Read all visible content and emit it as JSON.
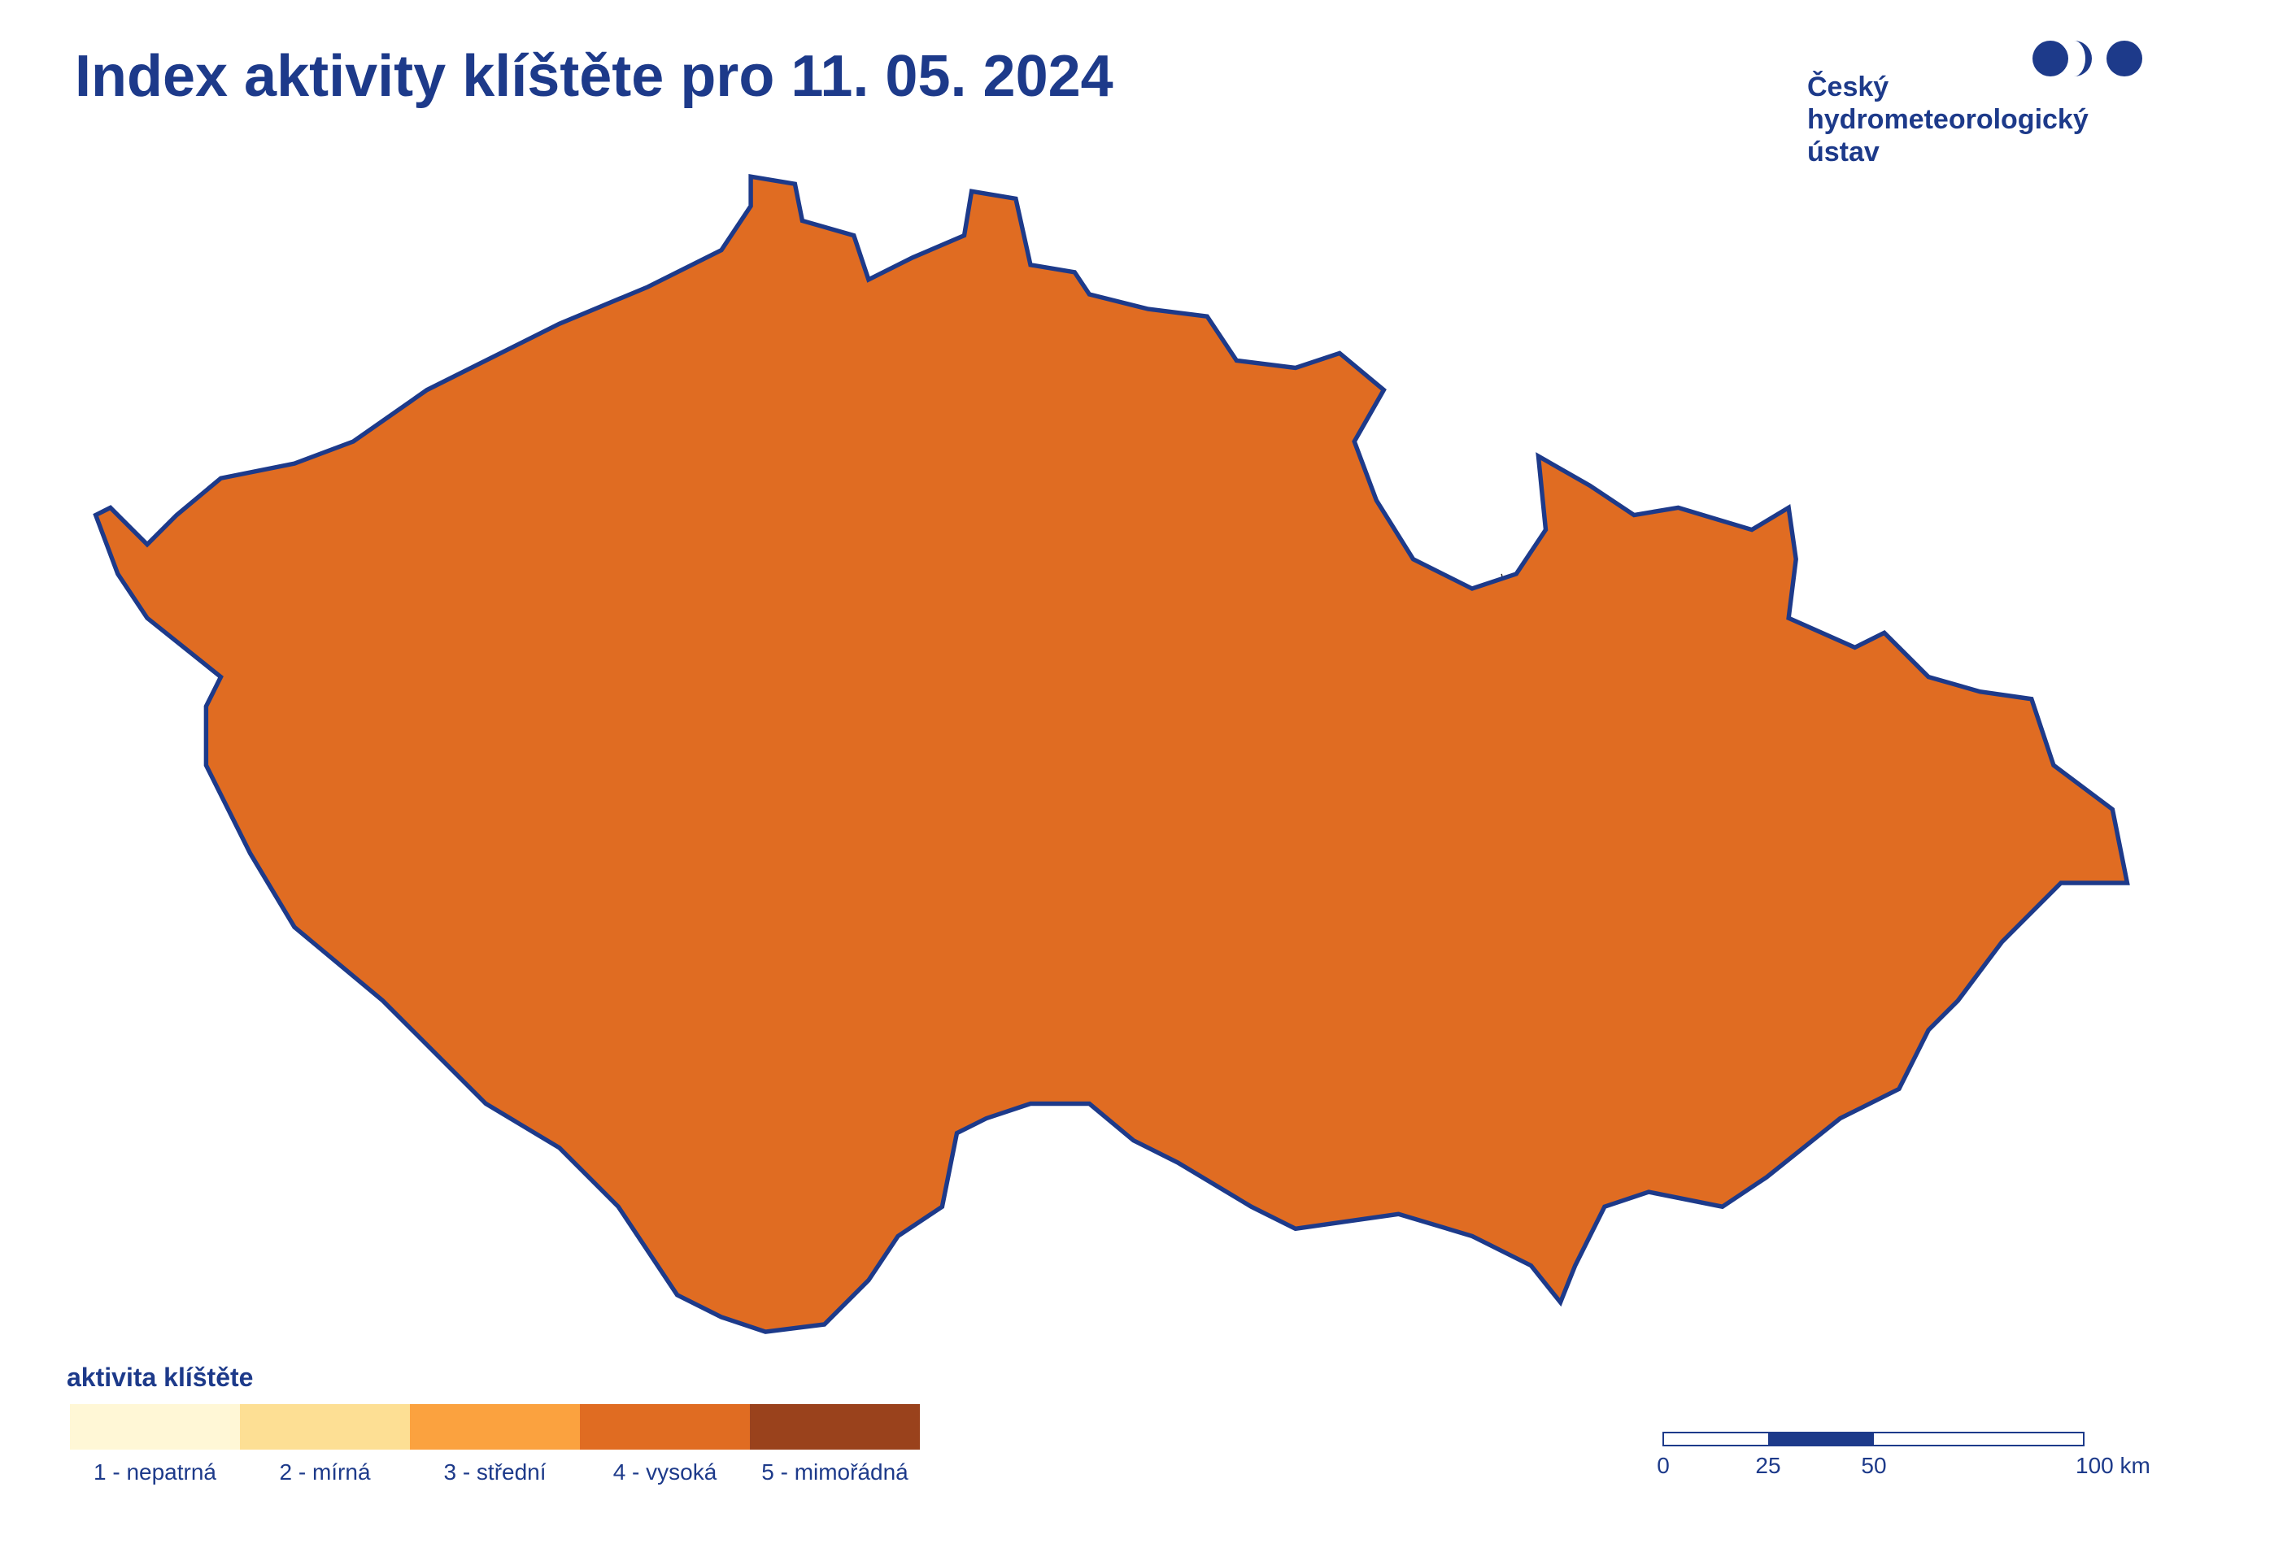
{
  "header": {
    "title": "Index aktivity klíštěte pro 11. 05. 2024"
  },
  "logo": {
    "lines": [
      "Český",
      "hydrometeorologický",
      "ústav"
    ]
  },
  "legend": {
    "title": "aktivita klíštěte",
    "items": [
      {
        "label": "1 - nepatrná",
        "color": "#fff7d6"
      },
      {
        "label": "2 - mírná",
        "color": "#fddf94"
      },
      {
        "label": "3 - střední",
        "color": "#fba23f"
      },
      {
        "label": "4 - vysoká",
        "color": "#e06c22"
      },
      {
        "label": "5 - mimořádná",
        "color": "#9a421c"
      }
    ]
  },
  "scale_bar": {
    "labels": [
      "0",
      "25",
      "50",
      "100 km"
    ]
  }
}
